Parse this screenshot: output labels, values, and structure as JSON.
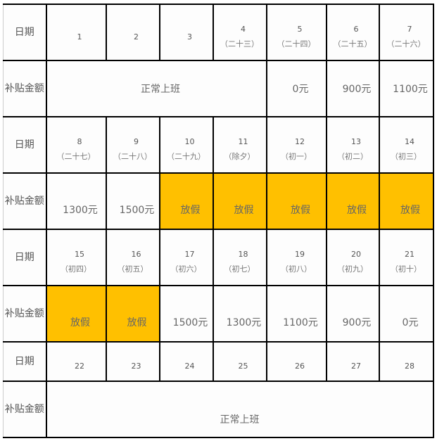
{
  "labels": {
    "date": "日期",
    "subsidy": "补贴金额"
  },
  "colors": {
    "holiday": "#FFC000"
  },
  "weeks": [
    {
      "days": [
        {
          "n": "1",
          "l": ""
        },
        {
          "n": "2",
          "l": ""
        },
        {
          "n": "3",
          "l": ""
        },
        {
          "n": "4",
          "l": "（二十三）"
        },
        {
          "n": "5",
          "l": "（二十四）"
        },
        {
          "n": "6",
          "l": "（二十五）"
        },
        {
          "n": "7",
          "l": "（二十六）"
        }
      ],
      "normal": "正常上班",
      "amounts": [
        "0元",
        "900元",
        "1100元"
      ]
    },
    {
      "days": [
        {
          "n": "8",
          "l": "（二十七）"
        },
        {
          "n": "9",
          "l": "（二十八）"
        },
        {
          "n": "10",
          "l": "（二十九）"
        },
        {
          "n": "11",
          "l": "（除夕）"
        },
        {
          "n": "12",
          "l": "（初一）"
        },
        {
          "n": "13",
          "l": "（初二）"
        },
        {
          "n": "14",
          "l": "（初三）"
        }
      ],
      "amounts": [
        "1300元",
        "1500元",
        "放假",
        "放假",
        "放假",
        "放假",
        "放假"
      ]
    },
    {
      "days": [
        {
          "n": "15",
          "l": "（初四）"
        },
        {
          "n": "16",
          "l": "（初五）"
        },
        {
          "n": "17",
          "l": "（初六）"
        },
        {
          "n": "18",
          "l": "（初七）"
        },
        {
          "n": "19",
          "l": "（初八）"
        },
        {
          "n": "20",
          "l": "（初九）"
        },
        {
          "n": "21",
          "l": "（初十）"
        }
      ],
      "amounts": [
        "放假",
        "放假",
        "1500元",
        "1300元",
        "1100元",
        "900元",
        "0元"
      ]
    },
    {
      "days": [
        {
          "n": "22"
        },
        {
          "n": "23"
        },
        {
          "n": "24"
        },
        {
          "n": "25"
        },
        {
          "n": "26"
        },
        {
          "n": "27"
        },
        {
          "n": "28"
        }
      ],
      "normal": "正常上班"
    }
  ]
}
